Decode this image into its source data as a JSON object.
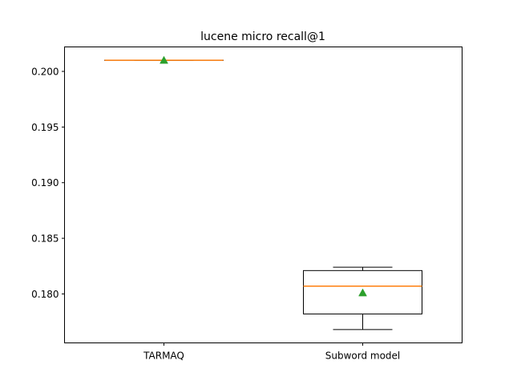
{
  "chart_data": {
    "type": "box",
    "title": "lucene micro recall@1",
    "xlabel": "",
    "ylabel": "",
    "categories": [
      "TARMAQ",
      "Subword model"
    ],
    "boxes": [
      {
        "name": "TARMAQ",
        "whisker_low": 0.201,
        "q1": 0.201,
        "median": 0.201,
        "q3": 0.201,
        "whisker_high": 0.201,
        "mean": 0.201
      },
      {
        "name": "Subword model",
        "whisker_low": 0.1768,
        "q1": 0.1782,
        "median": 0.1807,
        "q3": 0.1821,
        "whisker_high": 0.1824,
        "mean": 0.1801
      }
    ],
    "ylim": [
      0.1756,
      0.2022
    ],
    "yticks": [
      0.18,
      0.185,
      0.19,
      0.195,
      0.2
    ],
    "ytick_labels": [
      "0.180",
      "0.185",
      "0.190",
      "0.195",
      "0.200"
    ],
    "grid": false,
    "showmeans": true,
    "colors": {
      "box": "#000000",
      "median": "#ff7f0e",
      "mean": "#2ca02c",
      "background": "#ffffff"
    }
  }
}
